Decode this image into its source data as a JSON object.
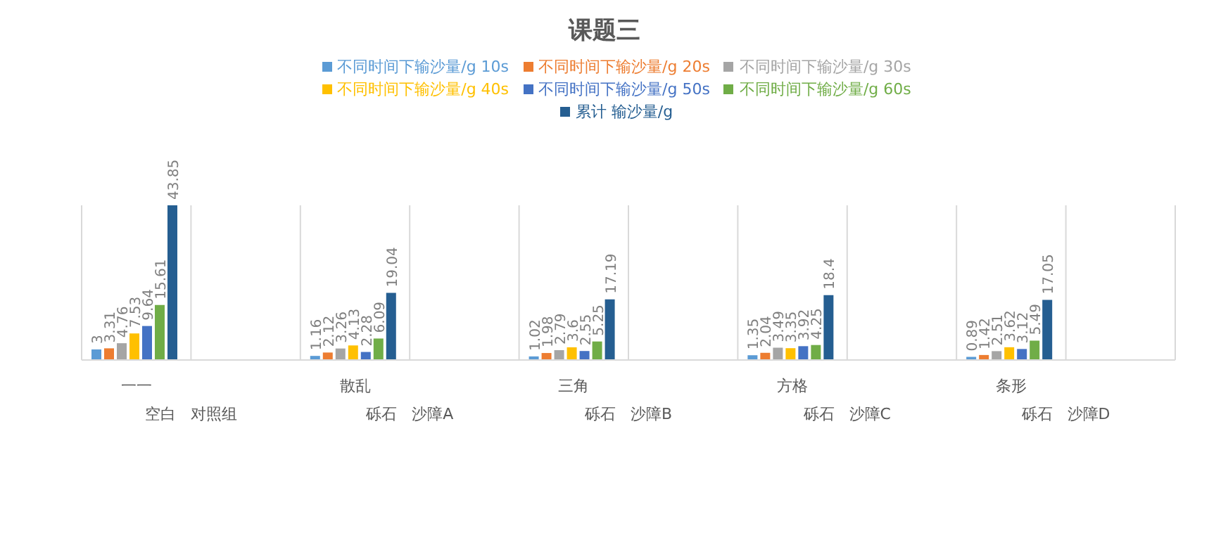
{
  "chart_data": {
    "type": "bar",
    "title": "课题三",
    "categories": [
      "一一",
      null,
      "散乱",
      null,
      "三角",
      null,
      "方格",
      null,
      "条形",
      null
    ],
    "series": [
      {
        "name": "不同时间下输沙量/g 10s",
        "color": "#5b9bd5",
        "values": [
          3,
          null,
          1.16,
          null,
          1.02,
          null,
          1.35,
          null,
          0.89,
          null
        ]
      },
      {
        "name": "不同时间下输沙量/g 20s",
        "color": "#ed7d31",
        "values": [
          3.31,
          null,
          2.12,
          null,
          1.98,
          null,
          2.04,
          null,
          1.42,
          null
        ]
      },
      {
        "name": "不同时间下输沙量/g 30s",
        "color": "#a5a5a5",
        "values": [
          4.76,
          null,
          3.26,
          null,
          2.79,
          null,
          3.49,
          null,
          2.51,
          null
        ]
      },
      {
        "name": "不同时间下输沙量/g 40s",
        "color": "#ffc000",
        "values": [
          7.53,
          null,
          4.13,
          null,
          3.6,
          null,
          3.35,
          null,
          3.62,
          null
        ]
      },
      {
        "name": "不同时间下输沙量/g 50s",
        "color": "#4472c4",
        "values": [
          9.64,
          null,
          2.28,
          null,
          2.55,
          null,
          3.92,
          null,
          3.12,
          null
        ]
      },
      {
        "name": "不同时间下输沙量/g 60s",
        "color": "#70ad47",
        "values": [
          15.61,
          null,
          6.09,
          null,
          5.25,
          null,
          4.25,
          null,
          5.49,
          null
        ]
      },
      {
        "name": "累计   输沙量/g",
        "color": "#255e91",
        "values": [
          43.85,
          null,
          19.04,
          null,
          17.19,
          null,
          18.4,
          null,
          17.05,
          null
        ]
      }
    ],
    "annotations": [
      "空白   对照组",
      "砾石   沙障A",
      "砾石   沙障B",
      "砾石   沙障C",
      "砾石   沙障D"
    ],
    "data_labels": true,
    "grid": "x",
    "legend": "top"
  }
}
